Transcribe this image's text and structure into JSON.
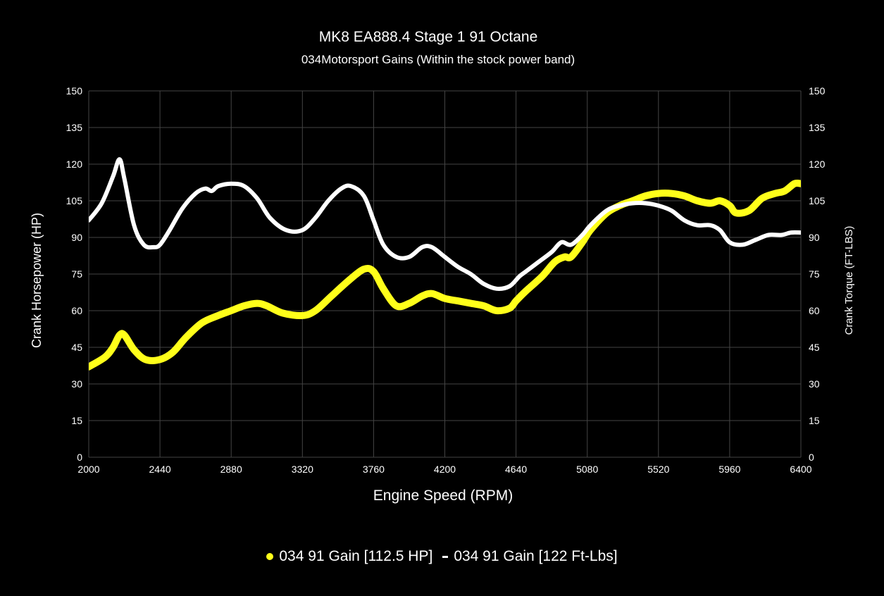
{
  "chart_data": {
    "type": "line",
    "title": "MK8 EA888.4 Stage 1 91 Octane",
    "subtitle": "034Motorsport Gains (Within the stock power band)",
    "xlabel": "Engine Speed (RPM)",
    "ylabel_left": "Crank Horsepower (HP)",
    "ylabel_right": "Crank Torque (FT-LBS)",
    "xlim": [
      2000,
      6400
    ],
    "ylim": [
      0,
      150
    ],
    "x_ticks": [
      "2000",
      "2440",
      "2880",
      "3320",
      "3760",
      "4200",
      "4640",
      "5080",
      "5520",
      "5960",
      "6400"
    ],
    "y_ticks": [
      "0",
      "15",
      "30",
      "45",
      "60",
      "75",
      "90",
      "105",
      "120",
      "135",
      "150"
    ],
    "grid": true,
    "legend_position": "bottom-center",
    "series": [
      {
        "name": "034 91 Gain [112.5 HP]",
        "axis": "left",
        "color": "#ffff1a",
        "x": [
          2000,
          2100,
          2150,
          2190,
          2220,
          2280,
          2350,
          2440,
          2520,
          2600,
          2700,
          2800,
          2880,
          2960,
          3040,
          3100,
          3200,
          3320,
          3400,
          3500,
          3600,
          3700,
          3760,
          3820,
          3900,
          3980,
          4060,
          4120,
          4200,
          4280,
          4360,
          4440,
          4520,
          4600,
          4640,
          4700,
          4800,
          4880,
          4940,
          4980,
          5050,
          5100,
          5200,
          5280,
          5360,
          5440,
          5520,
          5600,
          5680,
          5760,
          5840,
          5900,
          5960,
          6000,
          6080,
          6160,
          6240,
          6300,
          6360,
          6400
        ],
        "values": [
          37,
          41,
          45,
          50,
          50,
          44,
          40,
          40,
          43,
          49,
          55,
          58,
          60,
          62,
          63,
          62,
          59,
          58,
          60,
          66,
          72,
          77,
          76,
          69,
          62,
          63,
          66,
          67,
          65,
          64,
          63,
          62,
          60,
          61,
          64,
          68,
          74,
          80,
          82,
          82,
          88,
          93,
          100,
          103,
          105,
          107,
          108,
          108,
          107,
          105,
          104,
          105,
          103,
          100,
          101,
          106,
          108,
          109,
          112,
          112
        ]
      },
      {
        "name": "034 91 Gain [122 Ft-Lbs]",
        "axis": "right",
        "color": "#ffffff",
        "x": [
          2000,
          2080,
          2150,
          2190,
          2220,
          2280,
          2340,
          2400,
          2440,
          2500,
          2580,
          2660,
          2720,
          2760,
          2800,
          2880,
          2960,
          3040,
          3120,
          3220,
          3320,
          3400,
          3480,
          3560,
          3620,
          3700,
          3760,
          3820,
          3900,
          3980,
          4060,
          4120,
          4200,
          4280,
          4360,
          4440,
          4520,
          4600,
          4660,
          4700,
          4780,
          4860,
          4920,
          4980,
          5050,
          5100,
          5200,
          5280,
          5360,
          5440,
          5520,
          5600,
          5680,
          5760,
          5840,
          5900,
          5960,
          6040,
          6120,
          6200,
          6280,
          6340,
          6400
        ],
        "values": [
          97,
          104,
          115,
          122,
          114,
          95,
          87,
          86,
          87,
          93,
          102,
          108,
          110,
          109,
          111,
          112,
          111,
          106,
          98,
          93,
          93,
          98,
          105,
          110,
          111,
          107,
          97,
          87,
          82,
          82,
          86,
          86,
          82,
          78,
          75,
          71,
          69,
          70,
          74,
          76,
          80,
          84,
          88,
          87,
          91,
          95,
          101,
          103,
          104,
          104,
          103,
          101,
          97,
          95,
          95,
          93,
          88,
          87,
          89,
          91,
          91,
          92,
          92
        ]
      }
    ]
  }
}
